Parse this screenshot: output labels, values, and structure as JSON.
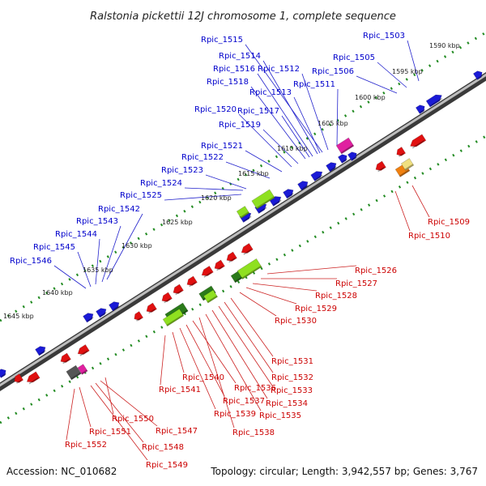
{
  "title": "Ralstonia pickettii 12J chromosome 1, complete sequence",
  "footer": {
    "accession": "Accession: NC_010682",
    "stats": "Topology: circular; Length: 3,942,557 bp; Genes: 3,767"
  },
  "kbp_labels": [
    {
      "text": "1590 kbp"
    },
    {
      "text": "1595 kbp"
    },
    {
      "text": "1600 kbp"
    },
    {
      "text": "1605 kbp"
    },
    {
      "text": "1610 kbp"
    },
    {
      "text": "1615 kbp"
    },
    {
      "text": "1620 kbp"
    },
    {
      "text": "1625 kbp"
    },
    {
      "text": "1630 kbp"
    },
    {
      "text": "1635 kbp"
    },
    {
      "text": "1640 kbp"
    },
    {
      "text": "1645 kbp"
    }
  ],
  "genes_top": [
    "Rpic_1515",
    "Rpic_1514",
    "Rpic_1516",
    "Rpic_1512",
    "Rpic_1518",
    "Rpic_1513",
    "Rpic_1511",
    "Rpic_1520",
    "Rpic_1517",
    "Rpic_1519",
    "Rpic_1521",
    "Rpic_1522",
    "Rpic_1523",
    "Rpic_1524",
    "Rpic_1525",
    "Rpic_1542",
    "Rpic_1543",
    "Rpic_1544",
    "Rpic_1545",
    "Rpic_1546",
    "Rpic_1503",
    "Rpic_1505",
    "Rpic_1506"
  ],
  "genes_bottom": [
    "Rpic_1509",
    "Rpic_1510",
    "Rpic_1526",
    "Rpic_1527",
    "Rpic_1528",
    "Rpic_1529",
    "Rpic_1530",
    "Rpic_1531",
    "Rpic_1532",
    "Rpic_1533",
    "Rpic_1534",
    "Rpic_1535",
    "Rpic_1536",
    "Rpic_1537",
    "Rpic_1538",
    "Rpic_1539",
    "Rpic_1540",
    "Rpic_1541",
    "Rpic_1547",
    "Rpic_1548",
    "Rpic_1549",
    "Rpic_1550",
    "Rpic_1551",
    "Rpic_1552"
  ],
  "colors": {
    "forward_cds": "#1a1ad6",
    "reverse_cds": "#e01010",
    "gene_feature_green": "#8fe020",
    "gene_feature_dark": "#2a7a1a",
    "gene_feature_pink": "#e020a0",
    "gene_feature_orange": "#f08010",
    "backbone": "#7a7a7a",
    "tick": "#228b22"
  }
}
